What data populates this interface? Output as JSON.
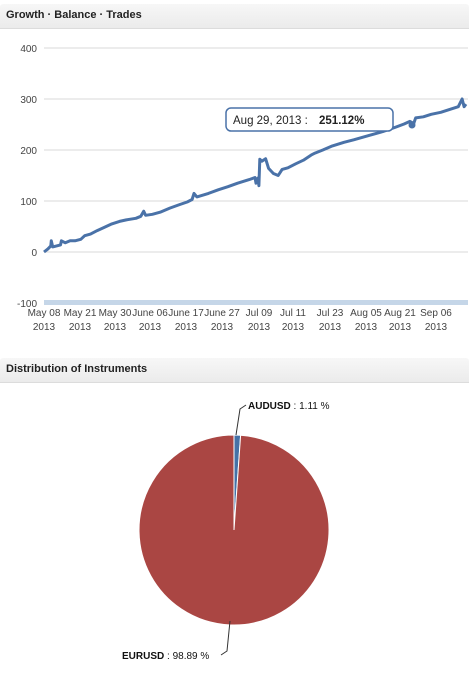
{
  "growth_panel": {
    "title": "Growth · Balance · Trades"
  },
  "distribution_panel": {
    "title": "Distribution of Instruments"
  },
  "tooltip": {
    "date": "Aug 29, 2013 :",
    "value": "251.12%"
  },
  "colors": {
    "line": "#4a72a8",
    "scrollbar": "#c5d6e8",
    "eurusd": "#aa4643",
    "audusd": "#4572a7",
    "tooltip_border": "#4a72a8"
  },
  "chart_data": [
    {
      "type": "line",
      "title": "Growth · Balance · Trades",
      "ylim": [
        -100,
        400
      ],
      "y_ticks": [
        "400",
        "300",
        "200",
        "100",
        "0",
        "-100"
      ],
      "x_tick_labels": [
        [
          "May 08",
          "2013"
        ],
        [
          "May 21",
          "2013"
        ],
        [
          "May 30",
          "2013"
        ],
        [
          "June 06",
          "2013"
        ],
        [
          "June 17",
          "2013"
        ],
        [
          "June 27",
          "2013"
        ],
        [
          "Jul 09",
          "2013"
        ],
        [
          "Jul 11",
          "2013"
        ],
        [
          "Jul 23",
          "2013"
        ],
        [
          "Aug 05",
          "2013"
        ],
        [
          "Aug 21",
          "2013"
        ],
        [
          "Sep 06",
          "2013"
        ]
      ],
      "series": [
        {
          "values": [
            [
              0,
              0
            ],
            [
              4,
              6
            ],
            [
              7,
              12
            ],
            [
              7.5,
              22
            ],
            [
              9,
              10
            ],
            [
              13,
              12
            ],
            [
              17,
              14
            ],
            [
              18,
              22
            ],
            [
              22,
              18
            ],
            [
              27,
              22
            ],
            [
              32,
              22
            ],
            [
              38,
              25
            ],
            [
              42,
              32
            ],
            [
              48,
              35
            ],
            [
              55,
              42
            ],
            [
              62,
              48
            ],
            [
              70,
              55
            ],
            [
              78,
              60
            ],
            [
              85,
              63
            ],
            [
              95,
              66
            ],
            [
              100,
              70
            ],
            [
              103,
              80
            ],
            [
              105,
              72
            ],
            [
              112,
              74
            ],
            [
              120,
              78
            ],
            [
              130,
              86
            ],
            [
              140,
              93
            ],
            [
              148,
              98
            ],
            [
              153,
              103
            ],
            [
              155,
              115
            ],
            [
              158,
              108
            ],
            [
              170,
              115
            ],
            [
              180,
              122
            ],
            [
              190,
              128
            ],
            [
              200,
              135
            ],
            [
              212,
              142
            ],
            [
              218,
              146
            ],
            [
              219,
              135
            ],
            [
              221,
              145
            ],
            [
              222,
              130
            ],
            [
              223,
              182
            ],
            [
              225,
              178
            ],
            [
              229,
              183
            ],
            [
              232,
              164
            ],
            [
              237,
              154
            ],
            [
              242,
              150
            ],
            [
              246,
              162
            ],
            [
              252,
              165
            ],
            [
              260,
              173
            ],
            [
              268,
              180
            ],
            [
              276,
              190
            ],
            [
              280,
              194
            ],
            [
              288,
              200
            ],
            [
              298,
              208
            ],
            [
              310,
              215
            ],
            [
              320,
              220
            ],
            [
              335,
              228
            ],
            [
              350,
              236
            ],
            [
              362,
              244
            ],
            [
              372,
              251
            ],
            [
              378,
              256
            ],
            [
              382,
              252
            ],
            [
              384,
              263
            ],
            [
              392,
              265
            ],
            [
              400,
              270
            ],
            [
              410,
              274
            ],
            [
              420,
              280
            ],
            [
              428,
              285
            ],
            [
              432,
              300
            ],
            [
              434,
              285
            ],
            [
              436,
              290
            ]
          ]
        }
      ]
    },
    {
      "type": "pie",
      "title": "Distribution of Instruments",
      "slices": [
        {
          "name": "AUDUSD",
          "value": 1.11,
          "label": " : 1.11 %"
        },
        {
          "name": "EURUSD",
          "value": 98.89,
          "label": " : 98.89 %"
        }
      ]
    }
  ]
}
